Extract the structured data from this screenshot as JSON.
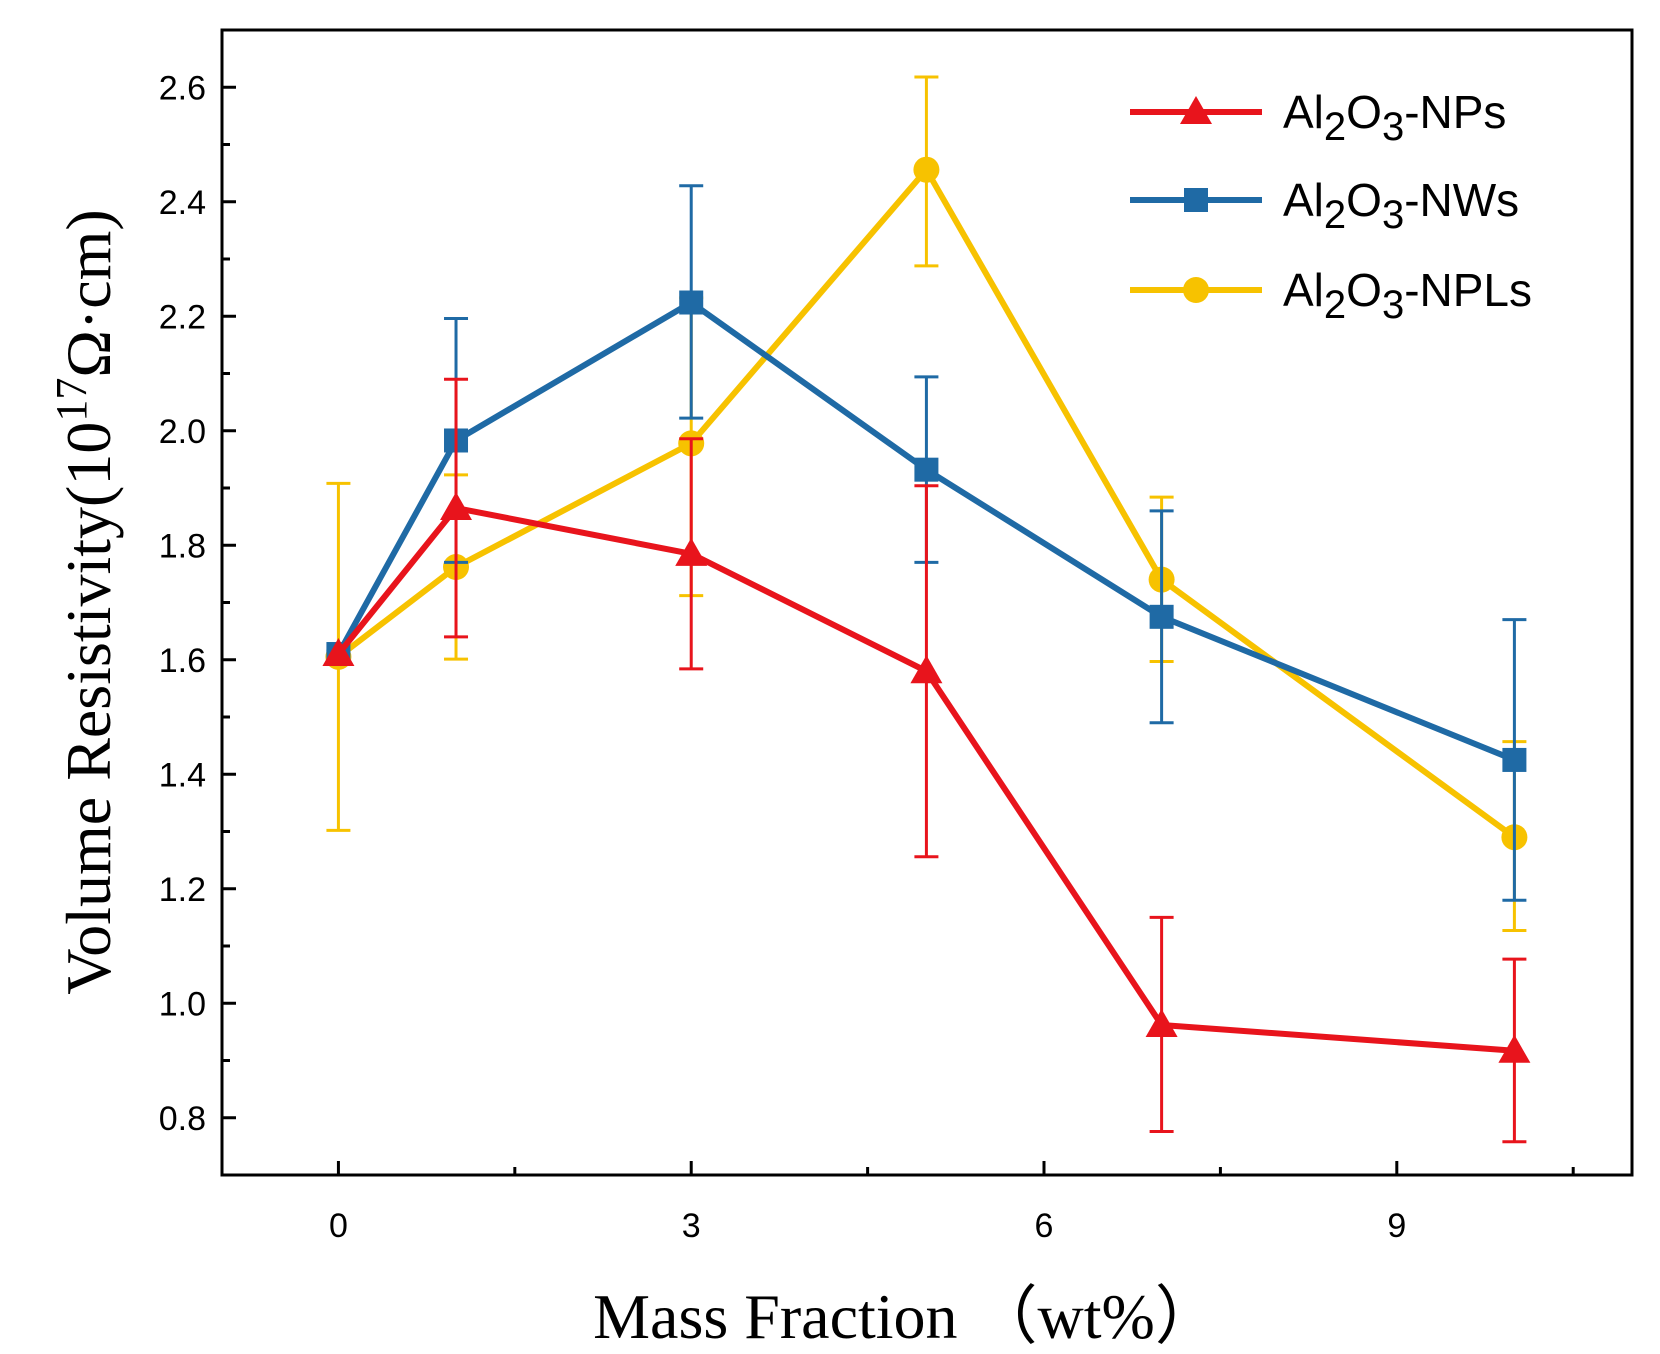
{
  "chart_data": {
    "type": "line",
    "title": "",
    "xlabel": "Mass Fraction （wt%）",
    "ylabel": {
      "prefix": "Volume Resistivity(10",
      "exponent": "17",
      "suffix": "Ω·cm)"
    },
    "xlim": [
      -0.99,
      11.0
    ],
    "ylim": [
      0.7,
      2.7
    ],
    "xticks": [
      0,
      3,
      6,
      9
    ],
    "yticks": [
      0.8,
      1.0,
      1.2,
      1.4,
      1.6,
      1.8,
      2.0,
      2.2,
      2.4,
      2.6
    ],
    "x": [
      0,
      1,
      3,
      5,
      7,
      10
    ],
    "legend_position": "top-right",
    "series": [
      {
        "name": "Al2O3-NPs",
        "legend_parts": [
          "Al",
          "2",
          "O",
          "3",
          "-NPs"
        ],
        "color": "#e8141c",
        "marker": "triangle",
        "values": [
          1.61,
          1.865,
          1.785,
          1.58,
          0.962,
          0.917
        ],
        "err_low": [
          1.61,
          1.64,
          1.584,
          1.256,
          0.776,
          0.758
        ],
        "err_high": [
          1.61,
          2.09,
          1.986,
          1.904,
          1.15,
          1.077
        ]
      },
      {
        "name": "Al2O3-NWs",
        "legend_parts": [
          "Al",
          "2",
          "O",
          "3",
          "-NWs"
        ],
        "color": "#1f6aa5",
        "marker": "square",
        "values": [
          1.61,
          1.983,
          2.224,
          1.932,
          1.675,
          1.425
        ],
        "err_low": [
          1.6,
          1.77,
          2.022,
          1.77,
          1.49,
          1.18
        ],
        "err_high": [
          1.615,
          2.196,
          2.428,
          2.094,
          1.86,
          1.67
        ]
      },
      {
        "name": "Al2O3-NPLs",
        "legend_parts": [
          "Al",
          "2",
          "O",
          "3",
          "-NPLs"
        ],
        "color": "#f7c200",
        "marker": "circle",
        "values": [
          1.605,
          1.762,
          1.978,
          2.456,
          1.74,
          1.29
        ],
        "err_low": [
          1.302,
          1.601,
          1.712,
          2.288,
          1.597,
          1.127
        ],
        "err_high": [
          1.908,
          1.923,
          2.232,
          2.618,
          1.884,
          1.457
        ]
      }
    ]
  }
}
